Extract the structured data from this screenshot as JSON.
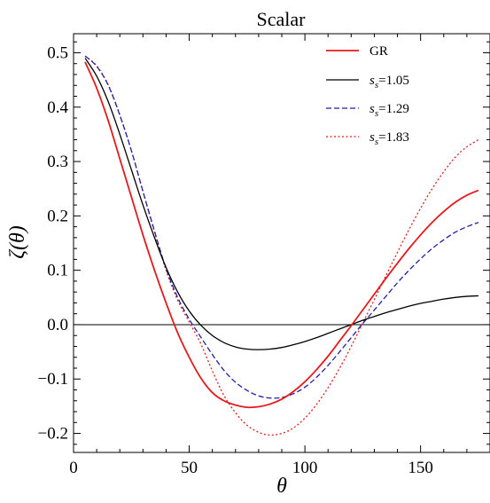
{
  "chart_data": {
    "type": "line",
    "title": "Scalar",
    "xlabel": "θ",
    "ylabel": "ζ(θ)",
    "xlim": [
      0,
      180
    ],
    "ylim": [
      -0.235,
      0.535
    ],
    "xticks": [
      0,
      50,
      100,
      150
    ],
    "xtick_labels": [
      "0",
      "50",
      "100",
      "150"
    ],
    "yticks": [
      -0.2,
      -0.1,
      0.0,
      0.1,
      0.2,
      0.3,
      0.4,
      0.5
    ],
    "ytick_labels": [
      "−0.2",
      "−0.1",
      "0.0",
      "0.1",
      "0.2",
      "0.3",
      "0.4",
      "0.5"
    ],
    "grid": false,
    "zero_line": true,
    "legend_position": "top-right",
    "x": [
      5,
      10,
      15,
      20,
      25,
      30,
      35,
      40,
      45,
      50,
      55,
      60,
      65,
      70,
      75,
      80,
      85,
      90,
      95,
      100,
      105,
      110,
      115,
      120,
      125,
      130,
      135,
      140,
      145,
      150,
      155,
      160,
      165,
      170,
      175
    ],
    "series": [
      {
        "name": "GR",
        "legend_text": "GR",
        "subscript": "",
        "color": "#e41a1c",
        "dash": "solid",
        "values": [
          0.483,
          0.435,
          0.375,
          0.305,
          0.235,
          0.165,
          0.1,
          0.04,
          -0.015,
          -0.06,
          -0.098,
          -0.125,
          -0.14,
          -0.148,
          -0.152,
          -0.151,
          -0.146,
          -0.137,
          -0.123,
          -0.105,
          -0.083,
          -0.058,
          -0.03,
          -0.002,
          0.027,
          0.056,
          0.085,
          0.113,
          0.14,
          0.165,
          0.188,
          0.208,
          0.225,
          0.238,
          0.247
        ]
      },
      {
        "name": "s_s=1.05",
        "legend_text": "=1.05",
        "subscript": "s",
        "color": "#000000",
        "dash": "solid",
        "values": [
          0.49,
          0.457,
          0.41,
          0.35,
          0.285,
          0.22,
          0.16,
          0.105,
          0.06,
          0.025,
          -0.001,
          -0.02,
          -0.033,
          -0.041,
          -0.045,
          -0.046,
          -0.045,
          -0.042,
          -0.037,
          -0.031,
          -0.024,
          -0.016,
          -0.008,
          0.0,
          0.008,
          0.015,
          0.022,
          0.028,
          0.034,
          0.039,
          0.043,
          0.047,
          0.05,
          0.052,
          0.053
        ]
      },
      {
        "name": "s_s=1.29",
        "legend_text": "=1.29",
        "subscript": "s",
        "color": "#1f1fa8",
        "dash": "dashed",
        "values": [
          0.494,
          0.475,
          0.44,
          0.385,
          0.32,
          0.245,
          0.172,
          0.103,
          0.05,
          0.01,
          -0.023,
          -0.055,
          -0.084,
          -0.106,
          -0.121,
          -0.131,
          -0.135,
          -0.134,
          -0.127,
          -0.115,
          -0.097,
          -0.075,
          -0.05,
          -0.024,
          0.002,
          0.027,
          0.052,
          0.077,
          0.1,
          0.121,
          0.14,
          0.156,
          0.17,
          0.18,
          0.188
        ]
      },
      {
        "name": "s_s=1.83",
        "legend_text": "=1.83",
        "subscript": "s",
        "color": "#e41a1c",
        "dash": "dotted",
        "values": [
          0.494,
          0.476,
          0.441,
          0.386,
          0.32,
          0.245,
          0.17,
          0.1,
          0.045,
          0.005,
          -0.035,
          -0.085,
          -0.13,
          -0.162,
          -0.185,
          -0.198,
          -0.203,
          -0.2,
          -0.19,
          -0.172,
          -0.147,
          -0.116,
          -0.08,
          -0.04,
          0.003,
          0.046,
          0.09,
          0.133,
          0.175,
          0.214,
          0.25,
          0.281,
          0.308,
          0.327,
          0.34
        ]
      }
    ]
  }
}
